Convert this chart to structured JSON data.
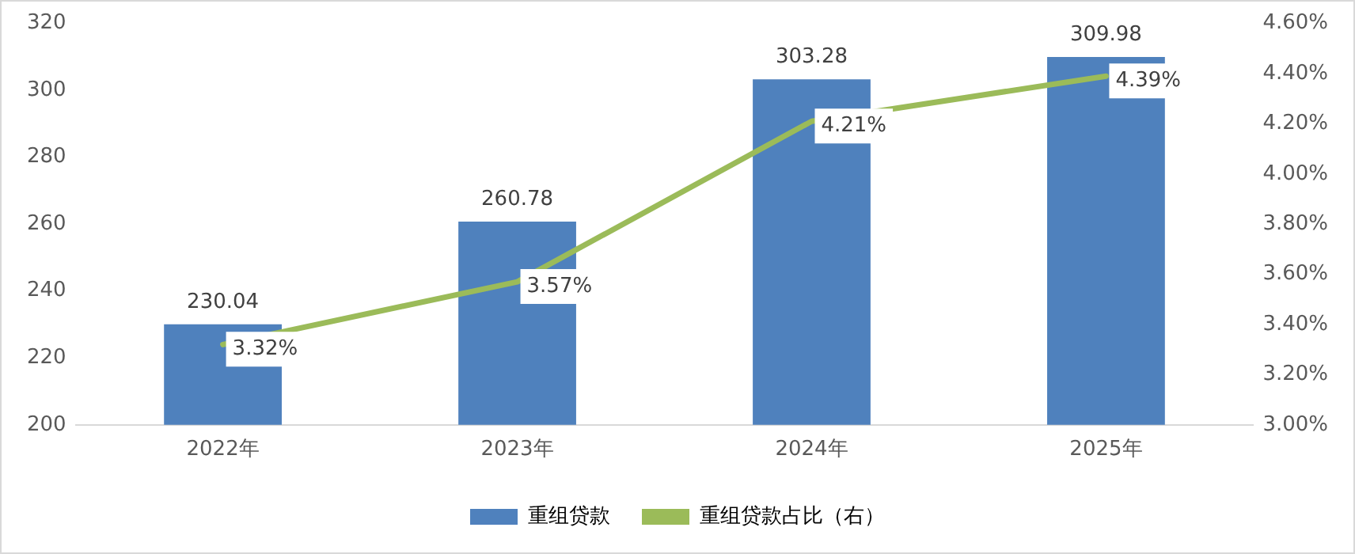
{
  "chart_data": {
    "type": "bar",
    "categories": [
      "2022年",
      "2023年",
      "2024年",
      "2025年"
    ],
    "series": [
      {
        "name": "重组贷款",
        "color": "#4f81bd",
        "values": [
          230.04,
          260.78,
          303.28,
          309.98
        ],
        "value_labels": [
          "230.04",
          "260.78",
          "303.28",
          "309.98"
        ]
      },
      {
        "name": "重组贷款占比（右）",
        "type": "line",
        "axis": "y2",
        "color": "#9bbb59",
        "values": [
          3.32,
          3.57,
          4.21,
          4.39
        ],
        "value_labels": [
          "3.32%",
          "3.57%",
          "4.21%",
          "4.39%"
        ]
      }
    ],
    "ylim": [
      200,
      320
    ],
    "yticks": [
      200,
      220,
      240,
      260,
      280,
      300,
      320
    ],
    "y2lim": [
      3.0,
      4.6
    ],
    "y2ticks": [
      {
        "value": 3.0,
        "label": "3.00%"
      },
      {
        "value": 3.2,
        "label": "3.20%"
      },
      {
        "value": 3.4,
        "label": "3.40%"
      },
      {
        "value": 3.6,
        "label": "3.60%"
      },
      {
        "value": 3.8,
        "label": "3.80%"
      },
      {
        "value": 4.0,
        "label": "4.00%"
      },
      {
        "value": 4.2,
        "label": "4.20%"
      },
      {
        "value": 4.4,
        "label": "4.40%"
      },
      {
        "value": 4.6,
        "label": "4.60%"
      }
    ],
    "grid": false,
    "legend": "bottom",
    "marker": "none",
    "line_style": "solid"
  }
}
